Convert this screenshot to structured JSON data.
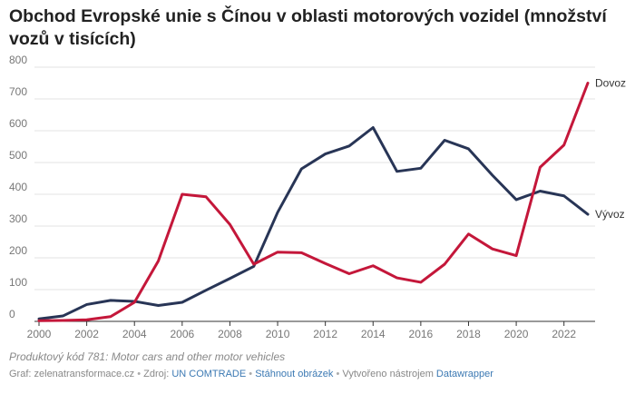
{
  "title": "Obchod Evropské unie s Čínou v oblasti motorových vozidel (množství vozů v tisících)",
  "chart_data": {
    "type": "line",
    "title": "Obchod Evropské unie s Čínou v oblasti motorových vozidel (množství vozů v tisících)",
    "xlabel": "",
    "ylabel": "",
    "xlim": [
      2000,
      2023
    ],
    "ylim": [
      0,
      800
    ],
    "x_ticks": [
      2000,
      2002,
      2004,
      2006,
      2008,
      2010,
      2012,
      2014,
      2016,
      2018,
      2020,
      2022
    ],
    "y_ticks": [
      0,
      100,
      200,
      300,
      400,
      500,
      600,
      700,
      800
    ],
    "grid": true,
    "legend": "direct labels at line ends",
    "x": [
      2000,
      2001,
      2002,
      2003,
      2004,
      2005,
      2006,
      2007,
      2008,
      2009,
      2010,
      2011,
      2012,
      2013,
      2014,
      2015,
      2016,
      2017,
      2018,
      2019,
      2020,
      2021,
      2022,
      2023
    ],
    "series": [
      {
        "name": "Dovoz",
        "color": "#c4173a",
        "values": [
          2,
          3,
          5,
          15,
          60,
          190,
          400,
          392,
          305,
          180,
          218,
          216,
          182,
          150,
          175,
          137,
          123,
          180,
          275,
          228,
          207,
          485,
          555,
          750
        ]
      },
      {
        "name": "Vývoz",
        "color": "#283556",
        "values": [
          8,
          17,
          53,
          66,
          63,
          50,
          60,
          98,
          135,
          173,
          343,
          480,
          527,
          552,
          610,
          472,
          482,
          570,
          543,
          460,
          383,
          410,
          395,
          337
        ]
      }
    ]
  },
  "notes": "Produktový kód 781: Motor cars and other motor vehicles",
  "footer": {
    "graf_label": "Graf: zelenatransformace.cz",
    "sep1": " • ",
    "zdroj_label": "Zdroj: ",
    "zdroj_link": "UN COMTRADE",
    "sep2": " • ",
    "download_link": "Stáhnout obrázek",
    "sep3": " • ",
    "created_label": "Vytvořeno nástrojem ",
    "created_link": "Datawrapper"
  },
  "colors": {
    "grid": "#e3e3e3",
    "axis": "#333333",
    "tick_label": "#777777"
  }
}
